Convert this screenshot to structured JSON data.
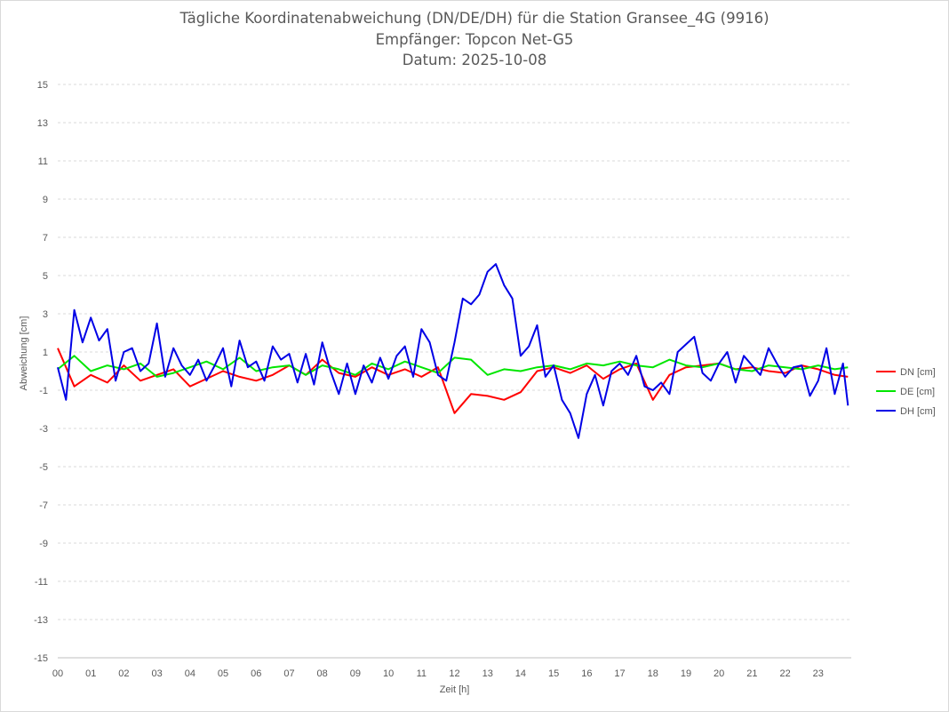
{
  "chart_data": {
    "type": "line",
    "title": [
      "Tägliche Koordinatenabweichung (DN/DE/DH) für die Station Gransee_4G (9916)",
      "Empfänger: Topcon Net-G5",
      "Datum: 2025-10-08"
    ],
    "xlabel": "Zeit [h]",
    "ylabel": "Abweichung [cm]",
    "xlim": [
      0,
      24
    ],
    "ylim": [
      -15,
      15
    ],
    "x_ticks": [
      "00",
      "01",
      "02",
      "03",
      "04",
      "05",
      "06",
      "07",
      "08",
      "09",
      "10",
      "11",
      "12",
      "13",
      "14",
      "15",
      "16",
      "17",
      "18",
      "19",
      "20",
      "21",
      "22",
      "23"
    ],
    "y_ticks": [
      15,
      13,
      11,
      9,
      7,
      5,
      3,
      1,
      -1,
      -3,
      -5,
      -7,
      -9,
      -11,
      -13,
      -15
    ],
    "grid": true,
    "legend_position": "right",
    "series": [
      {
        "name": "DN [cm]",
        "color": "#ff0000",
        "x": [
          0,
          0.5,
          1,
          1.5,
          2,
          2.5,
          3,
          3.5,
          4,
          4.5,
          5,
          5.5,
          6,
          6.5,
          7,
          7.5,
          8,
          8.5,
          9,
          9.5,
          10,
          10.5,
          11,
          11.5,
          12,
          12.5,
          13,
          13.5,
          14,
          14.5,
          15,
          15.5,
          16,
          16.5,
          17,
          17.5,
          18,
          18.5,
          19,
          19.5,
          20,
          20.5,
          21,
          21.5,
          22,
          22.5,
          23,
          23.5,
          23.9
        ],
        "y": [
          1.2,
          -0.8,
          -0.2,
          -0.6,
          0.3,
          -0.5,
          -0.2,
          0.1,
          -0.8,
          -0.4,
          0,
          -0.3,
          -0.5,
          -0.2,
          0.3,
          -0.2,
          0.6,
          -0.1,
          -0.3,
          0.2,
          -0.2,
          0.1,
          -0.3,
          0.2,
          -2.2,
          -1.2,
          -1.3,
          -1.5,
          -1.1,
          0,
          0.2,
          -0.1,
          0.3,
          -0.4,
          0.1,
          0.4,
          -1.5,
          -0.2,
          0.2,
          0.3,
          0.4,
          0.1,
          0.2,
          0,
          -0.1,
          0.3,
          0.1,
          -0.2,
          -0.3
        ]
      },
      {
        "name": "DE [cm]",
        "color": "#00e600",
        "x": [
          0,
          0.5,
          1,
          1.5,
          2,
          2.5,
          3,
          3.5,
          4,
          4.5,
          5,
          5.5,
          6,
          6.5,
          7,
          7.5,
          8,
          8.5,
          9,
          9.5,
          10,
          10.5,
          11,
          11.5,
          12,
          12.5,
          13,
          13.5,
          14,
          14.5,
          15,
          15.5,
          16,
          16.5,
          17,
          17.5,
          18,
          18.5,
          19,
          19.5,
          20,
          20.5,
          21,
          21.5,
          22,
          22.5,
          23,
          23.5,
          23.9
        ],
        "y": [
          0.1,
          0.8,
          0,
          0.3,
          0.1,
          0.4,
          -0.3,
          -0.1,
          0.2,
          0.5,
          0.1,
          0.7,
          0,
          0.2,
          0.3,
          -0.2,
          0.3,
          0.1,
          -0.2,
          0.4,
          0.1,
          0.5,
          0.2,
          -0.1,
          0.7,
          0.6,
          -0.2,
          0.1,
          0,
          0.2,
          0.3,
          0.1,
          0.4,
          0.3,
          0.5,
          0.3,
          0.2,
          0.6,
          0.3,
          0.2,
          0.4,
          0.1,
          0,
          0.3,
          0.2,
          0.1,
          0.3,
          0.1,
          0.2
        ]
      },
      {
        "name": "DH [cm]",
        "color": "#0000e6",
        "x": [
          0,
          0.25,
          0.5,
          0.75,
          1,
          1.25,
          1.5,
          1.75,
          2,
          2.25,
          2.5,
          2.75,
          3,
          3.25,
          3.5,
          3.75,
          4,
          4.25,
          4.5,
          4.75,
          5,
          5.25,
          5.5,
          5.75,
          6,
          6.25,
          6.5,
          6.75,
          7,
          7.25,
          7.5,
          7.75,
          8,
          8.25,
          8.5,
          8.75,
          9,
          9.25,
          9.5,
          9.75,
          10,
          10.25,
          10.5,
          10.75,
          11,
          11.25,
          11.5,
          11.75,
          12,
          12.25,
          12.5,
          12.75,
          13,
          13.25,
          13.5,
          13.75,
          14,
          14.25,
          14.5,
          14.75,
          15,
          15.25,
          15.5,
          15.75,
          16,
          16.25,
          16.5,
          16.75,
          17,
          17.25,
          17.5,
          17.75,
          18,
          18.25,
          18.5,
          18.75,
          19,
          19.25,
          19.5,
          19.75,
          20,
          20.25,
          20.5,
          20.75,
          21,
          21.25,
          21.5,
          21.75,
          22,
          22.25,
          22.5,
          22.75,
          23,
          23.25,
          23.5,
          23.75,
          23.9
        ],
        "y": [
          0.2,
          -1.5,
          3.2,
          1.5,
          2.8,
          1.6,
          2.2,
          -0.5,
          1,
          1.2,
          0,
          0.4,
          2.5,
          -0.3,
          1.2,
          0.3,
          -0.2,
          0.6,
          -0.5,
          0.3,
          1.2,
          -0.8,
          1.6,
          0.2,
          0.5,
          -0.5,
          1.3,
          0.6,
          0.9,
          -0.6,
          0.9,
          -0.7,
          1.5,
          0,
          -1.2,
          0.4,
          -1.2,
          0.3,
          -0.6,
          0.7,
          -0.4,
          0.8,
          1.3,
          -0.3,
          2.2,
          1.5,
          -0.2,
          -0.5,
          1.5,
          3.8,
          3.5,
          4,
          5.2,
          5.6,
          4.5,
          3.8,
          0.8,
          1.3,
          2.4,
          -0.3,
          0.3,
          -1.5,
          -2.2,
          -3.5,
          -1.2,
          -0.2,
          -1.8,
          0,
          0.4,
          -0.2,
          0.8,
          -0.8,
          -1,
          -0.6,
          -1.2,
          1,
          1.4,
          1.8,
          -0.1,
          -0.5,
          0.4,
          1,
          -0.6,
          0.8,
          0.3,
          -0.2,
          1.2,
          0.4,
          -0.3,
          0.2,
          0.3,
          -1.3,
          -0.5,
          1.2,
          -1.2,
          0.4,
          -1.8
        ]
      }
    ]
  }
}
